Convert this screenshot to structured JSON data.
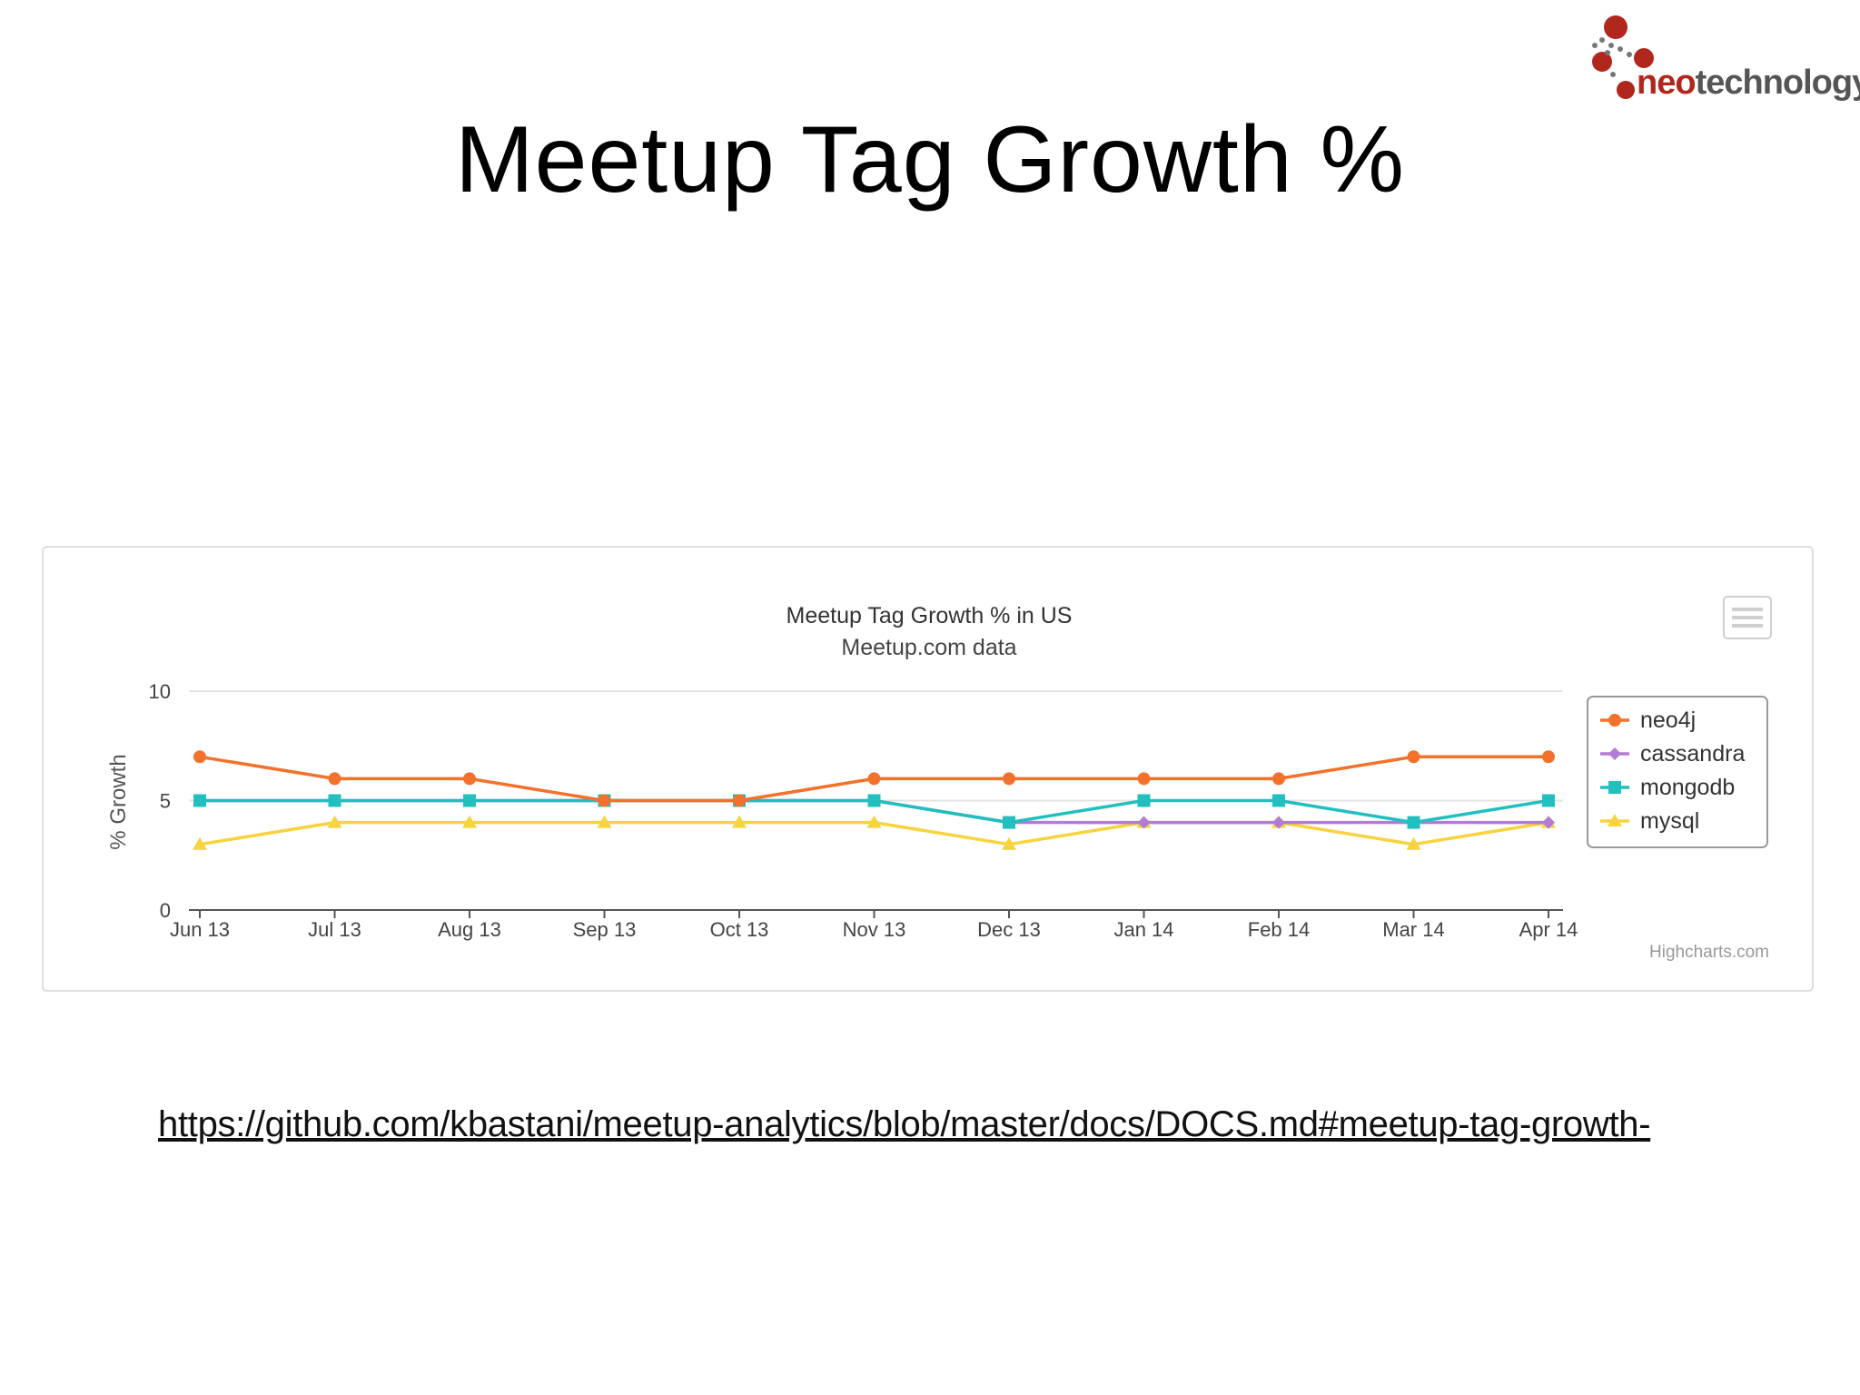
{
  "slide": {
    "title": "Meetup Tag Growth %",
    "link": "https://github.com/kbastani/meetup-analytics/blob/master/docs/DOCS.md#meetup-tag-growth-"
  },
  "logo": {
    "neo": "neo",
    "technology": "technology",
    "colors": {
      "dots": "#b1271d",
      "text": "#555555"
    }
  },
  "chart_data": {
    "type": "line",
    "title": "Meetup Tag Growth % in US",
    "subtitle": "Meetup.com data",
    "xlabel": "",
    "ylabel": "% Growth",
    "ylim": [
      0,
      10
    ],
    "yticks": [
      0,
      5,
      10
    ],
    "grid": true,
    "legend": "right",
    "credits": "Highcharts.com",
    "categories": [
      "Jun 13",
      "Jul 13",
      "Aug 13",
      "Sep 13",
      "Oct 13",
      "Nov 13",
      "Dec 13",
      "Jan 14",
      "Feb 14",
      "Mar 14",
      "Apr 14"
    ],
    "series": [
      {
        "name": "neo4j",
        "color": "#f2722b",
        "marker": "circle",
        "values": [
          7,
          6,
          6,
          5,
          5,
          6,
          6,
          6,
          6,
          7,
          7
        ]
      },
      {
        "name": "cassandra",
        "color": "#b27cd6",
        "marker": "diamond",
        "values": [
          5,
          5,
          5,
          5,
          5,
          5,
          4,
          4,
          4,
          4,
          4
        ]
      },
      {
        "name": "mongodb",
        "color": "#22bfbf",
        "marker": "square",
        "values": [
          5,
          5,
          5,
          5,
          5,
          5,
          4,
          5,
          5,
          4,
          5
        ]
      },
      {
        "name": "mysql",
        "color": "#f7d33d",
        "marker": "triangle",
        "values": [
          3,
          4,
          4,
          4,
          4,
          4,
          3,
          4,
          4,
          3,
          4
        ]
      }
    ]
  }
}
